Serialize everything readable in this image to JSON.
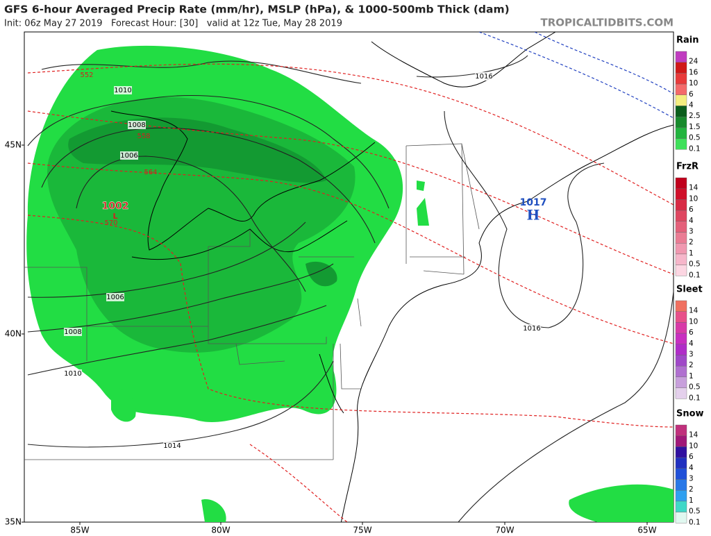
{
  "header": {
    "title": "GFS 6-hour Averaged Precip Rate (mm/hr), MSLP (hPa), & 1000-500mb Thick (dam)",
    "subtitle": "Init: 06z May 27 2019   Forecast Hour: [30]   valid at 12z Tue, May 28 2019",
    "site": "TROPICALTIDBITS.COM"
  },
  "map": {
    "lat_labels": [
      "45N",
      "40N",
      "35N"
    ],
    "lon_labels": [
      "85W",
      "80W",
      "75W",
      "70W",
      "65W"
    ],
    "isobar_labels": [
      "1010",
      "1008",
      "1006",
      "1016",
      "1006",
      "1008",
      "1010",
      "1014",
      "1016"
    ],
    "thickness_labels": [
      "552",
      "558",
      "564",
      "570"
    ],
    "low": {
      "value": "1002",
      "symbol": "L"
    },
    "high": {
      "value": "1017",
      "symbol": "H"
    }
  },
  "legend": [
    {
      "title": "Rain",
      "labels": [
        "24",
        "16",
        "10",
        "6",
        "4",
        "2.5",
        "1.5",
        "0.5",
        "0.1"
      ],
      "colors": [
        "#c03cc0",
        "#d01818",
        "#e83a3a",
        "#f46a6a",
        "#f4ee80",
        "#0a5e1c",
        "#178a2c",
        "#22b43e",
        "#3ee05a"
      ]
    },
    {
      "title": "FrzR",
      "labels": [
        "14",
        "10",
        "6",
        "4",
        "3",
        "2",
        "1",
        "0.5",
        "0.1"
      ],
      "colors": [
        "#c0001c",
        "#d0102a",
        "#d82a44",
        "#de4660",
        "#e4607a",
        "#ea7c94",
        "#f098b0",
        "#f6b6ca",
        "#fcd6e2"
      ]
    },
    {
      "title": "Sleet",
      "labels": [
        "14",
        "10",
        "6",
        "4",
        "3",
        "2",
        "1",
        "0.5",
        "0.1"
      ],
      "colors": [
        "#f07060",
        "#e8508a",
        "#d83aa8",
        "#c82ec0",
        "#b02cc8",
        "#a048c8",
        "#b070d0",
        "#c8a0dc",
        "#e4d0ec"
      ]
    },
    {
      "title": "Snow",
      "labels": [
        "14",
        "10",
        "6",
        "4",
        "3",
        "2",
        "1",
        "0.5",
        "0.1"
      ],
      "colors": [
        "#c0307c",
        "#a01878",
        "#3010a0",
        "#2030c0",
        "#2050d8",
        "#2878e8",
        "#30a0f0",
        "#40d8c8",
        "#e0f8f0"
      ]
    }
  ]
}
